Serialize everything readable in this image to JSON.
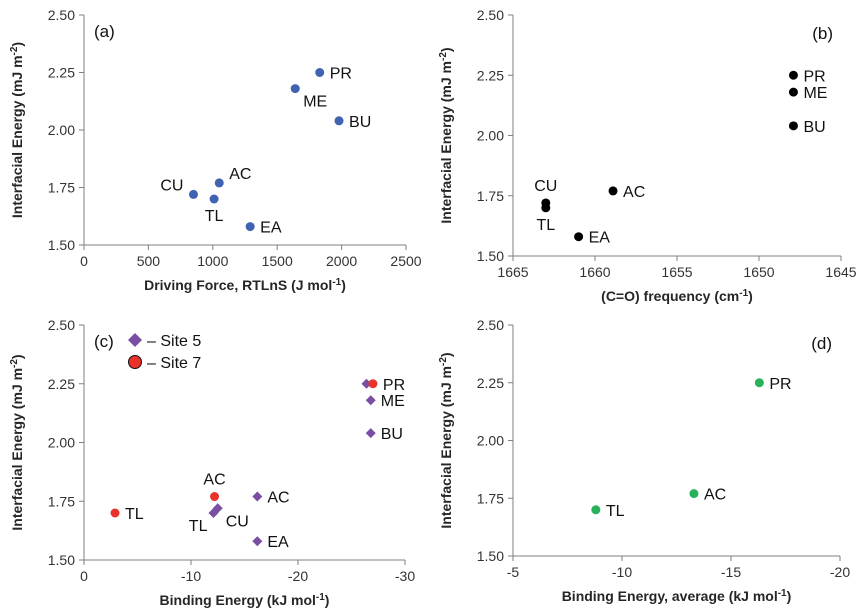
{
  "chart_data": [
    {
      "type": "scatter",
      "panel_label": "(a)",
      "xlabel": "Driving Force, RTLnS (J mol",
      "xlabel_sup": "-1",
      "xlabel_tail": ")",
      "ylabel": "Interfacial Energy (mJ m",
      "ylabel_sup": "-2",
      "ylabel_tail": ")",
      "xlim": [
        0,
        2500
      ],
      "ylim": [
        1.5,
        2.5
      ],
      "xticks": [
        0,
        500,
        1000,
        1500,
        2000,
        2500
      ],
      "xtick_labels": [
        "0",
        "500",
        "1000",
        "1500",
        "2000",
        "2500"
      ],
      "yticks": [
        1.5,
        1.75,
        2.0,
        2.25,
        2.5
      ],
      "ytick_labels": [
        "1.50",
        "1.75",
        "2.00",
        "2.25",
        "2.50"
      ],
      "series": [
        {
          "color": "#3f62b3",
          "marker": "circle",
          "points": [
            {
              "label": "PR",
              "x": 1830,
              "y": 2.25,
              "label_pos": "right"
            },
            {
              "label": "ME",
              "x": 1640,
              "y": 2.18,
              "label_pos": "below-right"
            },
            {
              "label": "BU",
              "x": 1980,
              "y": 2.04,
              "label_pos": "right"
            },
            {
              "label": "AC",
              "x": 1050,
              "y": 1.77,
              "label_pos": "above-right"
            },
            {
              "label": "CU",
              "x": 850,
              "y": 1.72,
              "label_pos": "above-left"
            },
            {
              "label": "TL",
              "x": 1010,
              "y": 1.7,
              "label_pos": "below"
            },
            {
              "label": "EA",
              "x": 1290,
              "y": 1.58,
              "label_pos": "right"
            }
          ]
        }
      ]
    },
    {
      "type": "scatter",
      "panel_label": "(b)",
      "xlabel": "(C=O) frequency  (cm",
      "xlabel_sup": "-1",
      "xlabel_tail": ")",
      "ylabel": "Interfacial Energy (mJ m",
      "ylabel_sup": "-2",
      "ylabel_tail": ")",
      "xlim": [
        1665,
        1645
      ],
      "ylim": [
        1.5,
        2.5
      ],
      "xticks": [
        1665,
        1660,
        1655,
        1650,
        1645
      ],
      "xtick_labels": [
        "1665",
        "1660",
        "1655",
        "1650",
        "1645"
      ],
      "yticks": [
        1.5,
        1.75,
        2.0,
        2.25,
        2.5
      ],
      "ytick_labels": [
        "1.50",
        "1.75",
        "2.00",
        "2.25",
        "2.50"
      ],
      "series": [
        {
          "color": "#000000",
          "marker": "circle",
          "points": [
            {
              "label": "PR",
              "x": 1647.9,
              "y": 2.25,
              "label_pos": "right"
            },
            {
              "label": "ME",
              "x": 1647.9,
              "y": 2.18,
              "label_pos": "right"
            },
            {
              "label": "BU",
              "x": 1647.9,
              "y": 2.04,
              "label_pos": "right"
            },
            {
              "label": "AC",
              "x": 1658.9,
              "y": 1.77,
              "label_pos": "right"
            },
            {
              "label": "CU",
              "x": 1663.0,
              "y": 1.72,
              "label_pos": "above"
            },
            {
              "label": "TL",
              "x": 1663.0,
              "y": 1.7,
              "label_pos": "below"
            },
            {
              "label": "EA",
              "x": 1661.0,
              "y": 1.58,
              "label_pos": "right"
            }
          ]
        }
      ]
    },
    {
      "type": "scatter",
      "panel_label": "(c)",
      "xlabel": "Binding Energy (kJ mol",
      "xlabel_sup": "-1",
      "xlabel_tail": ")",
      "ylabel": "Interfacial Energy (mJ m",
      "ylabel_sup": "-2",
      "ylabel_tail": ")",
      "xlim": [
        0,
        -30
      ],
      "ylim": [
        1.5,
        2.5
      ],
      "xticks": [
        0,
        -10,
        -20,
        -30
      ],
      "xtick_labels": [
        "0",
        "-10",
        "-20",
        "-30"
      ],
      "yticks": [
        1.5,
        1.75,
        2.0,
        2.25,
        2.5
      ],
      "ytick_labels": [
        "1.50",
        "1.75",
        "2.00",
        "2.25",
        "2.50"
      ],
      "legend": {
        "position": "top-left"
      },
      "series": [
        {
          "name": "– Site 5",
          "color": "#7a4ea3",
          "marker": "diamond",
          "points": [
            {
              "label": "",
              "x": -26.4,
              "y": 2.25
            },
            {
              "label": "ME",
              "x": -26.8,
              "y": 2.18,
              "label_pos": "right"
            },
            {
              "label": "BU",
              "x": -26.8,
              "y": 2.04,
              "label_pos": "right"
            },
            {
              "label": "AC",
              "x": -16.2,
              "y": 1.77,
              "label_pos": "right"
            },
            {
              "label": "CU",
              "x": -12.5,
              "y": 1.72,
              "label_pos": "below-right"
            },
            {
              "label": "TL",
              "x": -12.1,
              "y": 1.7,
              "label_pos": "below-left"
            },
            {
              "label": "EA",
              "x": -16.2,
              "y": 1.58,
              "label_pos": "right"
            }
          ]
        },
        {
          "name": "– Site 7",
          "color": "#e8322b",
          "marker": "circle",
          "points": [
            {
              "label": "PR",
              "x": -27.0,
              "y": 2.25,
              "label_pos": "right"
            },
            {
              "label": "AC",
              "x": -12.2,
              "y": 1.77,
              "label_pos": "above"
            },
            {
              "label": "TL",
              "x": -2.9,
              "y": 1.7,
              "label_pos": "right"
            }
          ]
        }
      ]
    },
    {
      "type": "scatter",
      "panel_label": "(d)",
      "xlabel": "Binding Energy, average (kJ mol",
      "xlabel_sup": "-1",
      "xlabel_tail": ")",
      "ylabel": "Interfacial Energy (mJ m",
      "ylabel_sup": "-2",
      "ylabel_tail": ")",
      "xlim": [
        -5,
        -20
      ],
      "ylim": [
        1.5,
        2.5
      ],
      "xticks": [
        -5,
        -10,
        -15,
        -20
      ],
      "xtick_labels": [
        "-5",
        "-10",
        "-15",
        "-20"
      ],
      "yticks": [
        1.5,
        1.75,
        2.0,
        2.25,
        2.5
      ],
      "ytick_labels": [
        "1.50",
        "1.75",
        "2.00",
        "2.25",
        "2.50"
      ],
      "series": [
        {
          "color": "#27b15a",
          "marker": "circle",
          "points": [
            {
              "label": "PR",
              "x": -16.3,
              "y": 2.25,
              "label_pos": "right"
            },
            {
              "label": "AC",
              "x": -13.3,
              "y": 1.77,
              "label_pos": "right"
            },
            {
              "label": "TL",
              "x": -8.8,
              "y": 1.7,
              "label_pos": "right"
            }
          ]
        }
      ]
    }
  ]
}
